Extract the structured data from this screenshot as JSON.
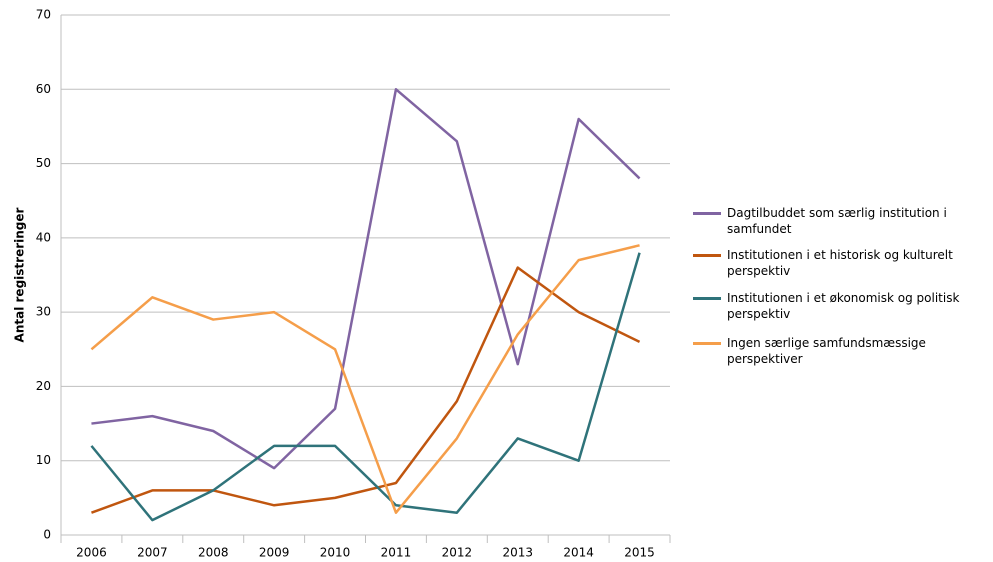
{
  "chart_data": {
    "type": "line",
    "y_label": "Antal registreringer",
    "categories": [
      "2006",
      "2007",
      "2008",
      "2009",
      "2010",
      "2011",
      "2012",
      "2013",
      "2014",
      "2015"
    ],
    "series": [
      {
        "name": "Dagtilbuddet som særlig institution i samfundet",
        "color": "#8064a2",
        "values": [
          15,
          16,
          14,
          9,
          17,
          60,
          53,
          23,
          56,
          48
        ]
      },
      {
        "name": "Institutionen i et historisk og kulturelt perspektiv",
        "color": "#c0560f",
        "values": [
          3,
          6,
          6,
          4,
          5,
          7,
          18,
          36,
          30,
          26
        ]
      },
      {
        "name": "Institutionen i et økonomisk og politisk perspektiv",
        "color": "#2f737a",
        "values": [
          12,
          2,
          6,
          12,
          12,
          4,
          3,
          13,
          10,
          38
        ]
      },
      {
        "name": "Ingen særlige samfundsmæssige perspektiver",
        "color": "#f59e4a",
        "values": [
          25,
          32,
          29,
          30,
          25,
          3,
          13,
          27,
          37,
          39
        ]
      }
    ],
    "ylim": [
      0,
      70
    ],
    "yticks": [
      0,
      10,
      20,
      30,
      40,
      50,
      60,
      70
    ],
    "grid": true,
    "legend": "right"
  }
}
